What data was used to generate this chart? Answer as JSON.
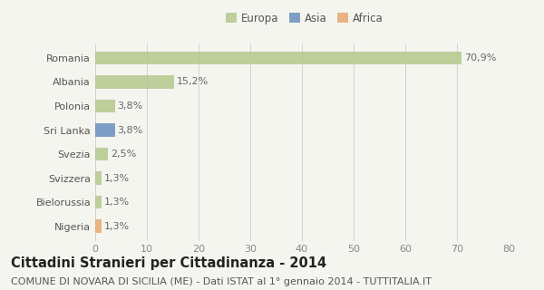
{
  "categories": [
    "Romania",
    "Albania",
    "Polonia",
    "Sri Lanka",
    "Svezia",
    "Svizzera",
    "Bielorussia",
    "Nigeria"
  ],
  "values": [
    70.9,
    15.2,
    3.8,
    3.8,
    2.5,
    1.3,
    1.3,
    1.3
  ],
  "labels": [
    "70,9%",
    "15,2%",
    "3,8%",
    "3,8%",
    "2,5%",
    "1,3%",
    "1,3%",
    "1,3%"
  ],
  "colors": [
    "#b5c98e",
    "#b5c98e",
    "#b5c98e",
    "#6a8fbf",
    "#b5c98e",
    "#b5c98e",
    "#b5c98e",
    "#e8a870"
  ],
  "legend_labels": [
    "Europa",
    "Asia",
    "Africa"
  ],
  "legend_colors": [
    "#b5c98e",
    "#6a8fbf",
    "#e8a870"
  ],
  "xlim": [
    0,
    80
  ],
  "xticks": [
    0,
    10,
    20,
    30,
    40,
    50,
    60,
    70,
    80
  ],
  "title": "Cittadini Stranieri per Cittadinanza - 2014",
  "subtitle": "COMUNE DI NOVARA DI SICILIA (ME) - Dati ISTAT al 1° gennaio 2014 - TUTTITALIA.IT",
  "bg_color": "#f5f5f0",
  "bar_height": 0.55,
  "title_fontsize": 10.5,
  "subtitle_fontsize": 8,
  "label_fontsize": 8,
  "tick_fontsize": 8,
  "legend_fontsize": 8.5
}
